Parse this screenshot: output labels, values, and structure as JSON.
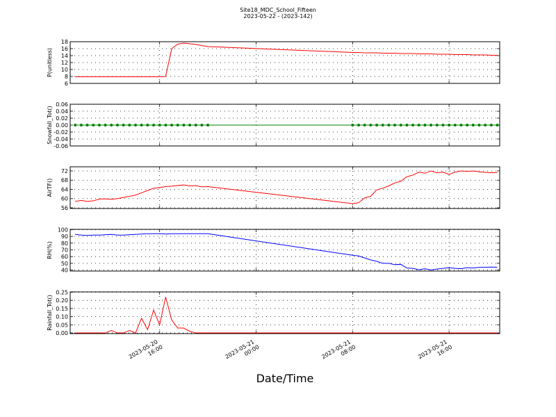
{
  "chart_data": {
    "type": "line",
    "title": "Site18_MDC_School_Fifteen",
    "subtitle": "2023-05-22 - (2023-142)",
    "xlabel": "Date/Time",
    "x": [
      "2023-05-20 09:00",
      "2023-05-20 09:30",
      "2023-05-20 10:00",
      "2023-05-20 10:30",
      "2023-05-20 11:00",
      "2023-05-20 11:30",
      "2023-05-20 12:00",
      "2023-05-20 12:30",
      "2023-05-20 13:00",
      "2023-05-20 13:30",
      "2023-05-20 14:00",
      "2023-05-20 14:30",
      "2023-05-20 15:00",
      "2023-05-20 15:30",
      "2023-05-20 16:00",
      "2023-05-20 16:30",
      "2023-05-20 17:00",
      "2023-05-20 17:30",
      "2023-05-20 18:00",
      "2023-05-20 18:30",
      "2023-05-20 19:00",
      "2023-05-20 19:30",
      "2023-05-20 20:00",
      "2023-05-21 08:00",
      "2023-05-21 08:30",
      "2023-05-21 09:00",
      "2023-05-21 09:30",
      "2023-05-21 10:00",
      "2023-05-21 10:30",
      "2023-05-21 11:00",
      "2023-05-21 11:30",
      "2023-05-21 12:00",
      "2023-05-21 12:30",
      "2023-05-21 13:00",
      "2023-05-21 13:30",
      "2023-05-21 14:00",
      "2023-05-21 14:30",
      "2023-05-21 15:00",
      "2023-05-21 15:30",
      "2023-05-21 16:00",
      "2023-05-21 16:30",
      "2023-05-21 17:00",
      "2023-05-21 17:30",
      "2023-05-21 18:00",
      "2023-05-21 18:30",
      "2023-05-21 19:00",
      "2023-05-21 19:30",
      "2023-05-21 20:00"
    ],
    "xlim": [
      "2023-05-20 08:35",
      "2023-05-21 20:12"
    ],
    "xticks": [
      "2023-05-20 16:00",
      "2023-05-21 00:00",
      "2023-05-21 08:00",
      "2023-05-21 16:00"
    ],
    "grid": true,
    "panels": [
      {
        "ylabel": "P(unitless)",
        "ylim": [
          6,
          18
        ],
        "yticks": [
          6,
          8,
          10,
          12,
          14,
          16,
          18
        ],
        "series": [
          {
            "color": "#ff0000",
            "markers": false,
            "values": [
              7.9,
              7.9,
              7.9,
              7.9,
              7.9,
              7.9,
              7.9,
              7.9,
              7.9,
              7.9,
              7.9,
              7.9,
              7.9,
              7.9,
              7.9,
              8.0,
              16.0,
              17.3,
              17.6,
              17.4,
              17.2,
              16.9,
              16.6,
              14.9,
              14.9,
              14.8,
              14.8,
              14.8,
              14.7,
              14.7,
              14.7,
              14.6,
              14.6,
              14.6,
              14.5,
              14.5,
              14.5,
              14.4,
              14.4,
              14.4,
              14.3,
              14.3,
              14.3,
              14.2,
              14.2,
              14.2,
              14.1,
              14.1
            ]
          }
        ]
      },
      {
        "ylabel": "Snowfall_Tot()",
        "ylim": [
          -0.06,
          0.06
        ],
        "yticks": [
          {
            "value": -0.06,
            "label": "-0.06"
          },
          {
            "value": -0.04,
            "label": "-0.04"
          },
          {
            "value": -0.02,
            "label": "-0.02"
          },
          {
            "value": 0,
            "label": "0.00"
          },
          {
            "value": 0.02,
            "label": "0.02"
          },
          {
            "value": 0.04,
            "label": "0.04"
          },
          {
            "value": 0.06,
            "label": "0.06"
          }
        ],
        "series": [
          {
            "color": "#008000",
            "markers": true,
            "values": [
              0,
              0,
              0,
              0,
              0,
              0,
              0,
              0,
              0,
              0,
              0,
              0,
              0,
              0,
              0,
              0,
              0,
              0,
              0,
              0,
              0,
              0,
              0,
              0,
              0,
              0,
              0,
              0,
              0,
              0,
              0,
              0,
              0,
              0,
              0,
              0,
              0,
              0,
              0,
              0,
              0,
              0,
              0,
              0,
              0,
              0,
              0,
              0
            ]
          }
        ]
      },
      {
        "ylabel": "AirTF()",
        "ylim": [
          55.7,
          73.8
        ],
        "yticks": [
          56,
          60,
          64,
          68,
          72
        ],
        "series": [
          {
            "color": "#ff0000",
            "markers": false,
            "values": [
              58.8,
              59.2,
              58.8,
              59.0,
              59.8,
              59.9,
              59.7,
              60.0,
              60.5,
              61.0,
              61.5,
              62.5,
              63.5,
              64.5,
              64.8,
              65.2,
              65.4,
              65.7,
              65.9,
              65.5,
              65.6,
              65.1,
              65.2,
              57.8,
              58.2,
              60.3,
              61.0,
              63.8,
              64.5,
              65.5,
              66.8,
              67.5,
              69.5,
              70.2,
              71.5,
              71.0,
              72.0,
              71.2,
              71.5,
              70.5,
              71.5,
              72.0,
              71.8,
              72.0,
              71.6,
              71.4,
              71.2,
              71.3
            ]
          }
        ]
      },
      {
        "ylabel": "RH(%)",
        "ylim": [
          38.5,
          100.5
        ],
        "yticks": [
          40,
          50,
          60,
          70,
          80,
          90,
          100
        ],
        "series": [
          {
            "color": "#0000ff",
            "markers": false,
            "values": [
              93,
              92,
              91.5,
              92,
              92,
              92.5,
              93,
              92,
              92,
              92.5,
              93,
              93.5,
              94,
              94,
              94,
              93.5,
              94,
              94,
              94,
              94,
              94,
              94,
              94,
              62,
              61,
              58,
              55,
              53,
              50,
              50,
              48,
              48.5,
              43,
              42.5,
              40.5,
              42,
              40,
              41.5,
              42.5,
              43.5,
              42.5,
              42,
              43.5,
              43,
              44,
              44,
              44.5,
              44
            ]
          }
        ]
      },
      {
        "ylabel": "Rainfall_Tot()",
        "ylim": [
          -0.004,
          0.252
        ],
        "yticks": [
          {
            "value": 0,
            "label": "0.00"
          },
          {
            "value": 0.05,
            "label": "0.05"
          },
          {
            "value": 0.1,
            "label": "0.10"
          },
          {
            "value": 0.15,
            "label": "0.15"
          },
          {
            "value": 0.2,
            "label": "0.20"
          },
          {
            "value": 0.25,
            "label": "0.25"
          }
        ],
        "series": [
          {
            "color": "#ff0000",
            "markers": false,
            "values": [
              0,
              0,
              0,
              0,
              0,
              0,
              0.015,
              0,
              0,
              0.015,
              0,
              0.09,
              0.02,
              0.14,
              0.05,
              0.22,
              0.08,
              0.03,
              0.03,
              0.01,
              0,
              0,
              0,
              0,
              0,
              0,
              0,
              0,
              0,
              0,
              0,
              0,
              0,
              0,
              0,
              0,
              0,
              0,
              0,
              0,
              0,
              0,
              0,
              0,
              0,
              0,
              0,
              0
            ]
          }
        ]
      }
    ]
  }
}
